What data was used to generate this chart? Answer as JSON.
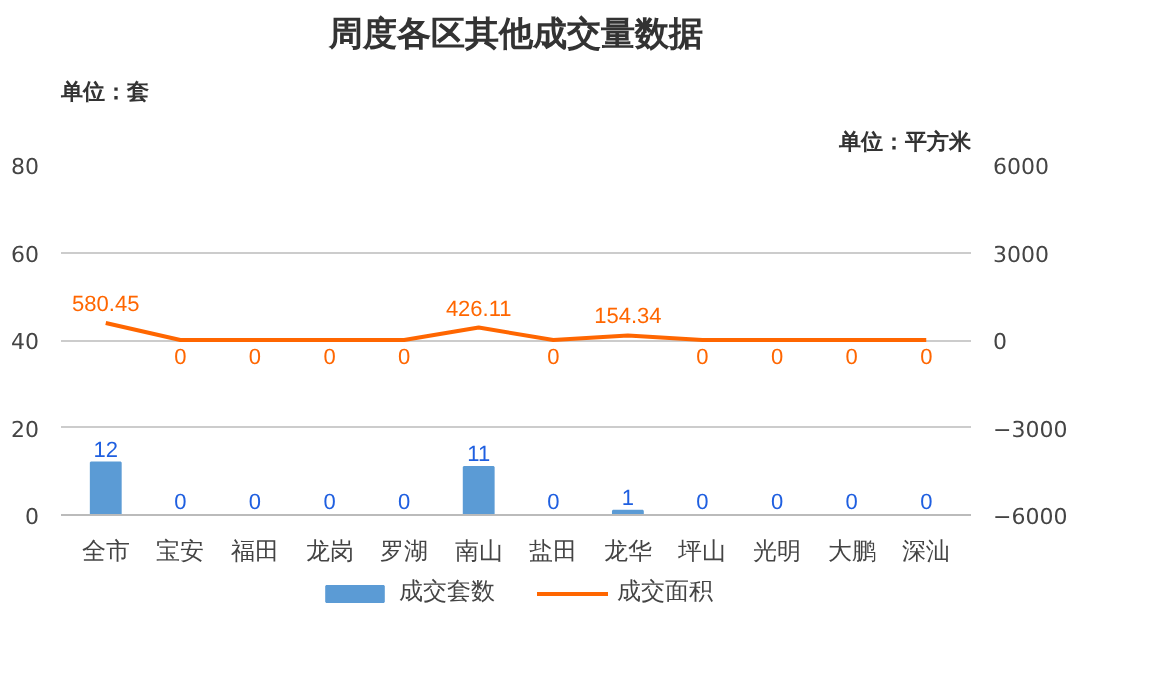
{
  "chart_data": {
    "type": "bar",
    "title": "周度各区其他成交量数据",
    "ylabel": "单位：套",
    "y2label": "单位：平方米",
    "categories": [
      "全市",
      "宝安",
      "福田",
      "龙岗",
      "罗湖",
      "南山",
      "盐田",
      "龙华",
      "坪山",
      "光明",
      "大鹏",
      "深汕"
    ],
    "series": [
      {
        "name": "成交套数",
        "color": "#5b9bd5",
        "values": [
          12,
          0,
          0,
          0,
          0,
          11,
          0,
          1,
          0,
          0,
          0,
          0
        ]
      },
      {
        "name": "成交面积",
        "type": "line",
        "axis": "y2",
        "color": "#ff6600",
        "values": [
          580.45,
          0,
          0,
          0,
          0,
          426.11,
          0,
          154.34,
          0,
          0,
          0,
          0
        ]
      }
    ],
    "ylim": [
      0,
      80
    ],
    "yticks": [
      0,
      20,
      40,
      60,
      80
    ],
    "y2lim": [
      -6000,
      6000
    ],
    "y2ticks": [
      -6000,
      -3000,
      0,
      3000,
      6000
    ],
    "grid": "y",
    "legend": "bottom",
    "data_labels": true,
    "marker": "none",
    "line_style": "solid"
  }
}
